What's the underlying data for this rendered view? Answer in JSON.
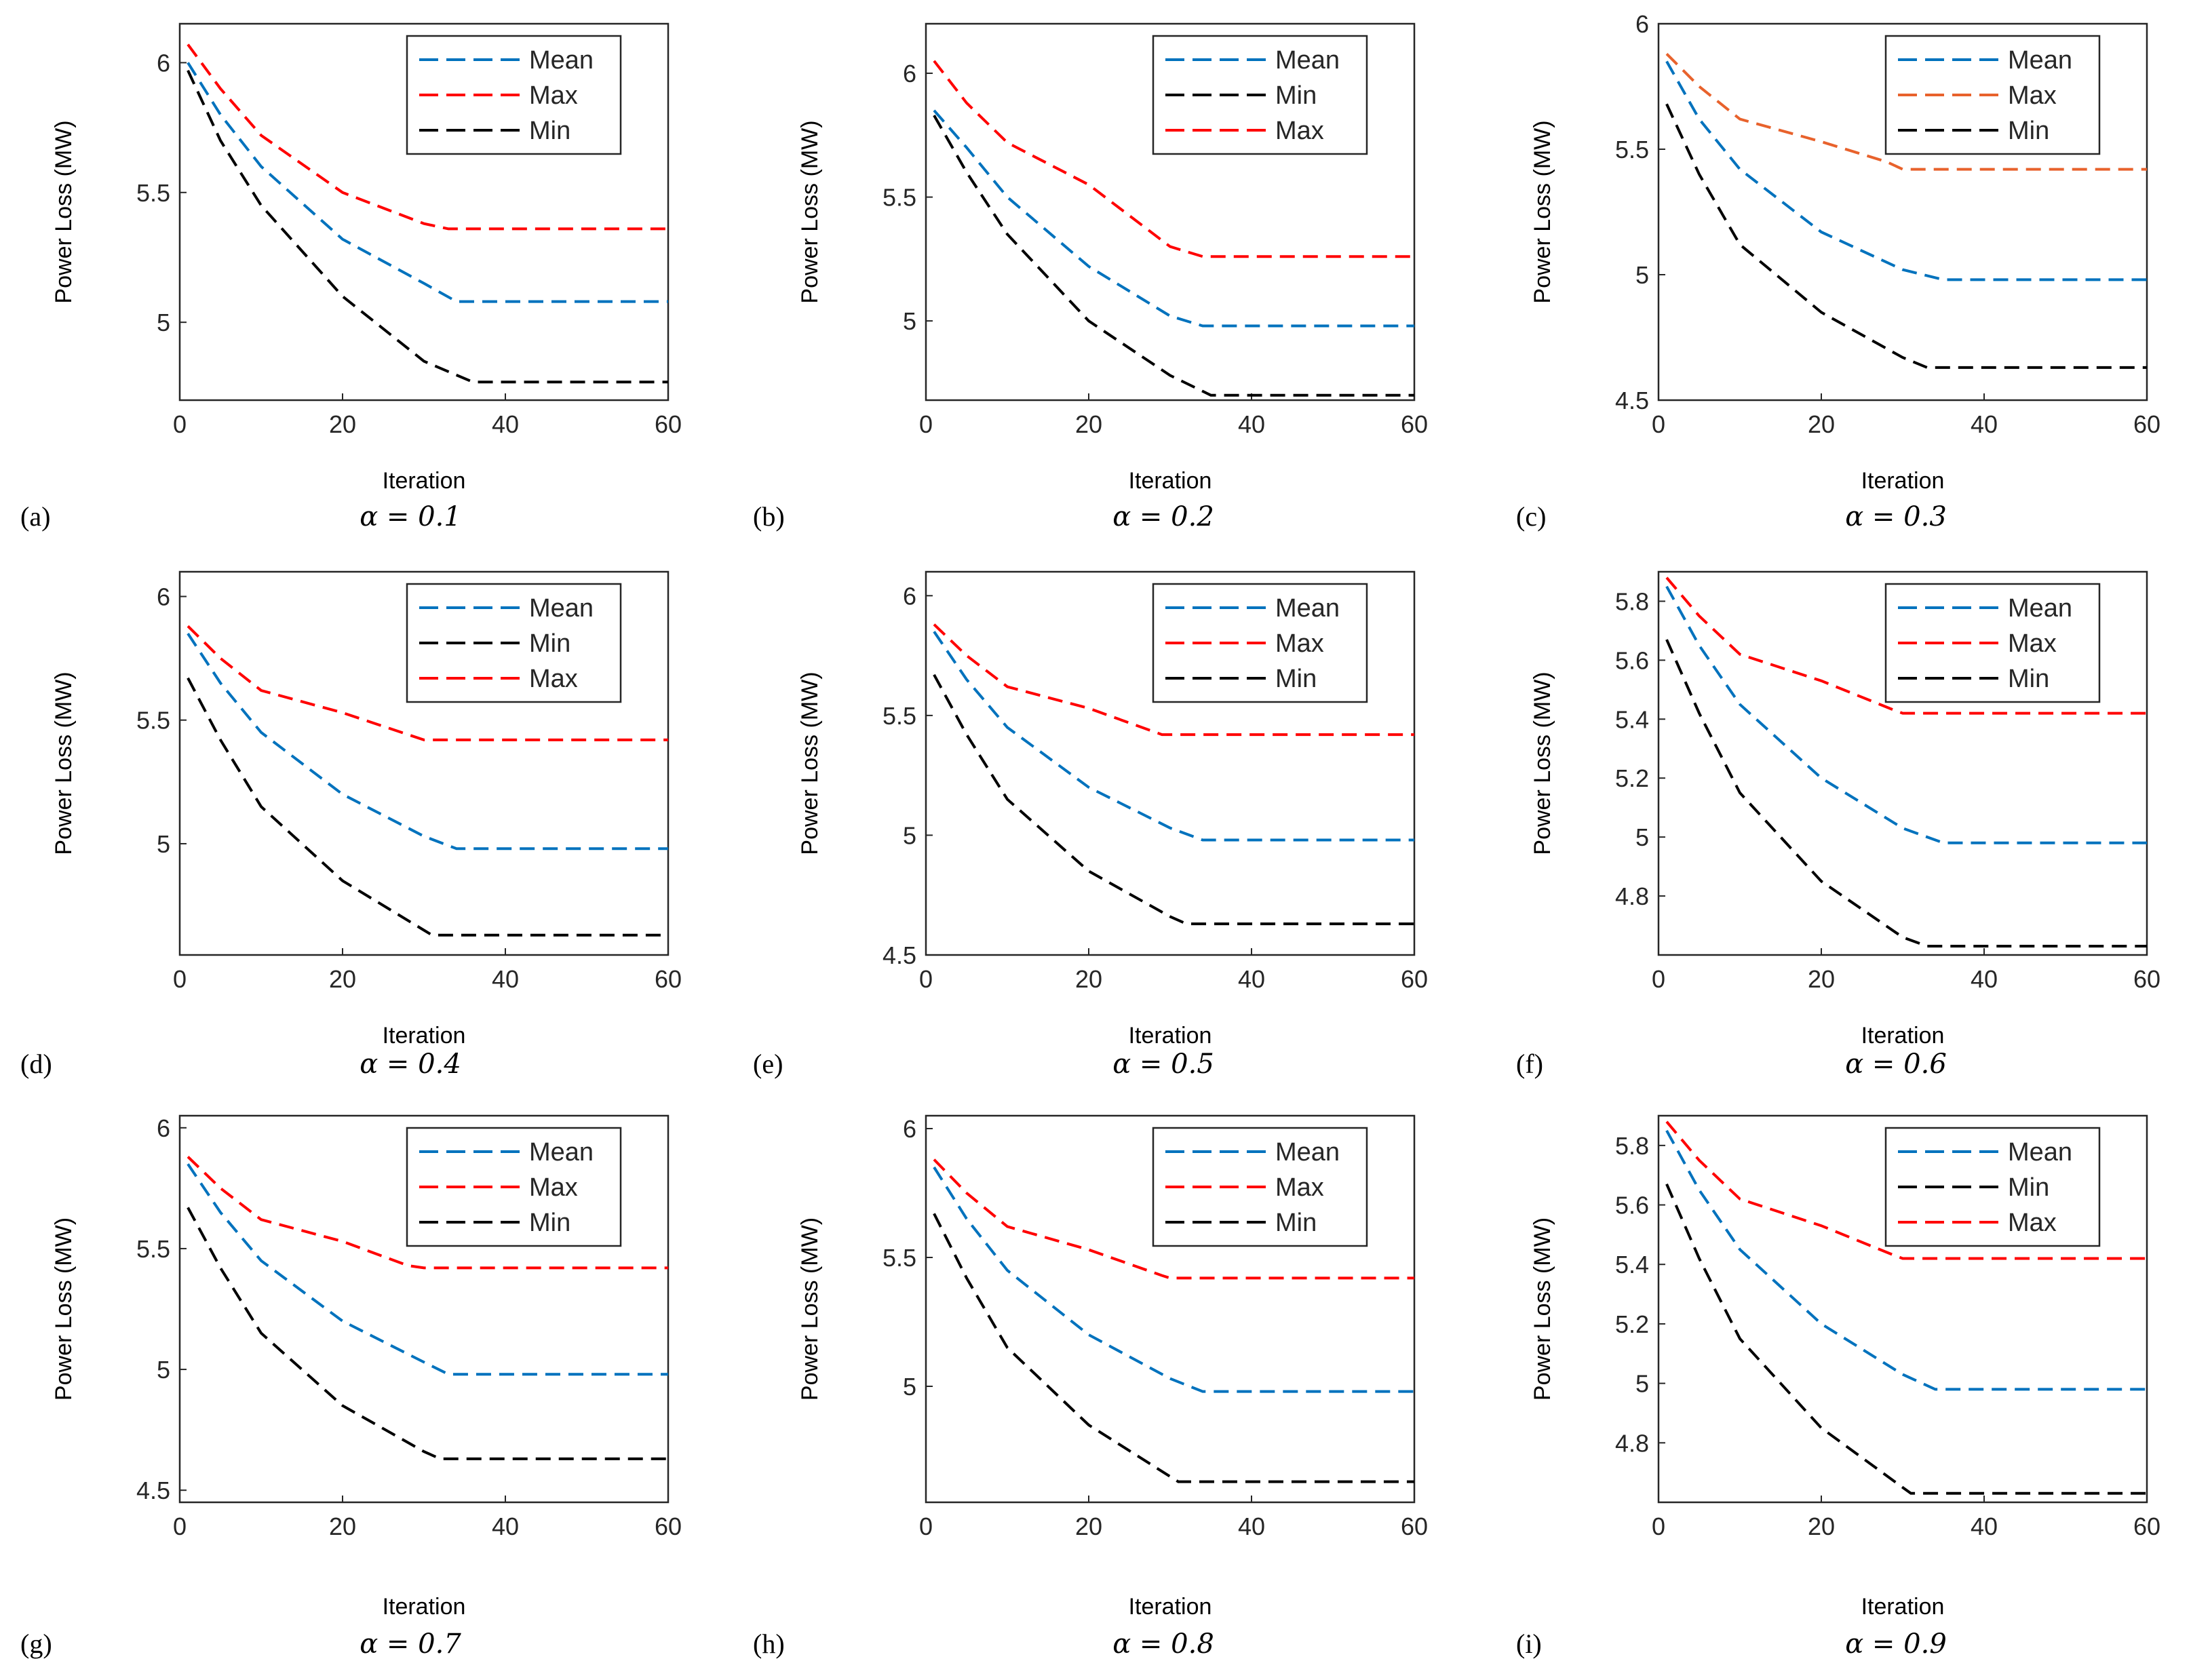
{
  "figure": {
    "description_hint": "3x3 grid of convergence curves",
    "colors": {
      "mean": "#0072BD",
      "max": "#FF0000",
      "min": "#000000",
      "max_orange": "#E8622C",
      "axis": "#262626"
    }
  },
  "chart_data": [
    {
      "panel": "(a)",
      "caption": "α = 0.1",
      "type": "line",
      "title": "",
      "xlabel": "Iteration",
      "ylabel": "Power Loss (MW)",
      "xlim": [
        0,
        60
      ],
      "ylim": [
        4.7,
        6.15
      ],
      "xticks": [
        "0",
        "20",
        "40",
        "60"
      ],
      "yticks": [
        "5",
        "5.5",
        "6"
      ],
      "legend": [
        "Mean",
        "Max",
        "Min"
      ],
      "legend_position": "top-right",
      "series": [
        {
          "name": "Mean",
          "color": "mean",
          "x": [
            1,
            5,
            10,
            20,
            30,
            34,
            60
          ],
          "values": [
            6.0,
            5.8,
            5.6,
            5.32,
            5.15,
            5.08,
            5.08
          ]
        },
        {
          "name": "Max",
          "color": "max",
          "x": [
            1,
            5,
            10,
            20,
            30,
            33,
            60
          ],
          "values": [
            6.07,
            5.9,
            5.72,
            5.5,
            5.38,
            5.36,
            5.36
          ]
        },
        {
          "name": "Min",
          "color": "min",
          "x": [
            1,
            5,
            10,
            20,
            30,
            36,
            60
          ],
          "values": [
            5.97,
            5.7,
            5.45,
            5.1,
            4.85,
            4.77,
            4.77
          ]
        }
      ]
    },
    {
      "panel": "(b)",
      "caption": "α = 0.2",
      "type": "line",
      "title": "",
      "xlabel": "Iteration",
      "ylabel": "Power Loss (MW)",
      "xlim": [
        0,
        60
      ],
      "ylim": [
        4.68,
        6.2
      ],
      "xticks": [
        "0",
        "20",
        "40",
        "60"
      ],
      "yticks": [
        "5",
        "5.5",
        "6"
      ],
      "legend": [
        "Mean",
        "Min",
        "Max"
      ],
      "legend_position": "top-right",
      "series": [
        {
          "name": "Mean",
          "color": "mean",
          "x": [
            1,
            5,
            10,
            20,
            30,
            34,
            60
          ],
          "values": [
            5.85,
            5.7,
            5.5,
            5.22,
            5.02,
            4.98,
            4.98
          ]
        },
        {
          "name": "Min",
          "color": "min",
          "x": [
            1,
            5,
            10,
            20,
            30,
            35,
            60
          ],
          "values": [
            5.83,
            5.6,
            5.35,
            5.0,
            4.78,
            4.7,
            4.7
          ]
        },
        {
          "name": "Max",
          "color": "max",
          "x": [
            1,
            5,
            10,
            20,
            30,
            34,
            60
          ],
          "values": [
            6.05,
            5.88,
            5.72,
            5.55,
            5.3,
            5.26,
            5.26
          ]
        }
      ]
    },
    {
      "panel": "(c)",
      "caption": "α = 0.3",
      "type": "line",
      "title": "",
      "xlabel": "Iteration",
      "ylabel": "Power Loss (MW)",
      "xlim": [
        0,
        60
      ],
      "ylim": [
        4.5,
        6.0
      ],
      "xticks": [
        "0",
        "20",
        "40",
        "60"
      ],
      "yticks": [
        "4.5",
        "5",
        "5.5",
        "6"
      ],
      "legend": [
        "Mean",
        "Max",
        "Min"
      ],
      "legend_position": "top-right",
      "series": [
        {
          "name": "Mean",
          "color": "mean",
          "x": [
            1,
            5,
            10,
            20,
            30,
            35,
            60
          ],
          "values": [
            5.85,
            5.62,
            5.42,
            5.17,
            5.02,
            4.98,
            4.98
          ]
        },
        {
          "name": "Max",
          "color": "max_orange",
          "x": [
            1,
            5,
            10,
            20,
            28,
            30,
            60
          ],
          "values": [
            5.88,
            5.75,
            5.62,
            5.53,
            5.45,
            5.42,
            5.42
          ]
        },
        {
          "name": "Min",
          "color": "min",
          "x": [
            1,
            5,
            10,
            20,
            30,
            33,
            60
          ],
          "values": [
            5.68,
            5.4,
            5.12,
            4.85,
            4.67,
            4.63,
            4.63
          ]
        }
      ]
    },
    {
      "panel": "(d)",
      "caption": "α = 0.4",
      "type": "line",
      "title": "",
      "xlabel": "Iteration",
      "ylabel": "Power Loss (MW)",
      "xlim": [
        0,
        60
      ],
      "ylim": [
        4.55,
        6.1
      ],
      "xticks": [
        "0",
        "20",
        "40",
        "60"
      ],
      "yticks": [
        "5",
        "5.5",
        "6"
      ],
      "legend": [
        "Mean",
        "Min",
        "Max"
      ],
      "legend_position": "top-right",
      "series": [
        {
          "name": "Mean",
          "color": "mean",
          "x": [
            1,
            5,
            10,
            20,
            30,
            34,
            60
          ],
          "values": [
            5.85,
            5.65,
            5.45,
            5.2,
            5.03,
            4.98,
            4.98
          ]
        },
        {
          "name": "Min",
          "color": "min",
          "x": [
            1,
            5,
            10,
            20,
            30,
            31,
            60
          ],
          "values": [
            5.67,
            5.42,
            5.15,
            4.85,
            4.65,
            4.63,
            4.63
          ]
        },
        {
          "name": "Max",
          "color": "max",
          "x": [
            1,
            5,
            10,
            20,
            30,
            31,
            60
          ],
          "values": [
            5.88,
            5.75,
            5.62,
            5.53,
            5.42,
            5.42,
            5.42
          ]
        }
      ]
    },
    {
      "panel": "(e)",
      "caption": "α = 0.5",
      "type": "line",
      "title": "",
      "xlabel": "Iteration",
      "ylabel": "Power Loss (MW)",
      "xlim": [
        0,
        60
      ],
      "ylim": [
        4.5,
        6.1
      ],
      "xticks": [
        "0",
        "20",
        "40",
        "60"
      ],
      "yticks": [
        "4.5",
        "5",
        "5.5",
        "6"
      ],
      "legend": [
        "Mean",
        "Max",
        "Min"
      ],
      "legend_position": "top-right",
      "series": [
        {
          "name": "Mean",
          "color": "mean",
          "x": [
            1,
            5,
            10,
            20,
            30,
            34,
            60
          ],
          "values": [
            5.85,
            5.65,
            5.45,
            5.2,
            5.03,
            4.98,
            4.98
          ]
        },
        {
          "name": "Max",
          "color": "max",
          "x": [
            1,
            5,
            10,
            20,
            29,
            30,
            60
          ],
          "values": [
            5.88,
            5.75,
            5.62,
            5.53,
            5.42,
            5.42,
            5.42
          ]
        },
        {
          "name": "Min",
          "color": "min",
          "x": [
            1,
            5,
            10,
            20,
            30,
            32,
            60
          ],
          "values": [
            5.67,
            5.42,
            5.15,
            4.85,
            4.66,
            4.63,
            4.63
          ]
        }
      ]
    },
    {
      "panel": "(f)",
      "caption": "α = 0.6",
      "type": "line",
      "title": "",
      "xlabel": "Iteration",
      "ylabel": "Power Loss (MW)",
      "xlim": [
        0,
        60
      ],
      "ylim": [
        4.6,
        5.9
      ],
      "xticks": [
        "0",
        "20",
        "40",
        "60"
      ],
      "yticks": [
        "4.8",
        "5",
        "5.2",
        "5.4",
        "5.6",
        "5.8"
      ],
      "legend": [
        "Mean",
        "Max",
        "Min"
      ],
      "legend_position": "top-right",
      "series": [
        {
          "name": "Mean",
          "color": "mean",
          "x": [
            1,
            5,
            10,
            20,
            30,
            35,
            60
          ],
          "values": [
            5.85,
            5.65,
            5.45,
            5.2,
            5.03,
            4.98,
            4.98
          ]
        },
        {
          "name": "Max",
          "color": "max",
          "x": [
            1,
            5,
            10,
            20,
            29,
            30,
            60
          ],
          "values": [
            5.88,
            5.75,
            5.62,
            5.53,
            5.43,
            5.42,
            5.42
          ]
        },
        {
          "name": "Min",
          "color": "min",
          "x": [
            1,
            5,
            10,
            20,
            30,
            33,
            60
          ],
          "values": [
            5.67,
            5.42,
            5.15,
            4.85,
            4.66,
            4.63,
            4.63
          ]
        }
      ]
    },
    {
      "panel": "(g)",
      "caption": "α = 0.7",
      "type": "line",
      "title": "",
      "xlabel": "Iteration",
      "ylabel": "Power Loss (MW)",
      "xlim": [
        0,
        60
      ],
      "ylim": [
        4.45,
        6.05
      ],
      "xticks": [
        "0",
        "20",
        "40",
        "60"
      ],
      "yticks": [
        "4.5",
        "5",
        "5.5",
        "6"
      ],
      "legend": [
        "Mean",
        "Max",
        "Min"
      ],
      "legend_position": "top-right",
      "series": [
        {
          "name": "Mean",
          "color": "mean",
          "x": [
            1,
            5,
            10,
            20,
            30,
            33,
            60
          ],
          "values": [
            5.85,
            5.65,
            5.45,
            5.2,
            5.03,
            4.98,
            4.98
          ]
        },
        {
          "name": "Max",
          "color": "max",
          "x": [
            1,
            5,
            10,
            20,
            28,
            30,
            60
          ],
          "values": [
            5.88,
            5.75,
            5.62,
            5.53,
            5.43,
            5.42,
            5.42
          ]
        },
        {
          "name": "Min",
          "color": "min",
          "x": [
            1,
            5,
            10,
            20,
            30,
            32,
            60
          ],
          "values": [
            5.67,
            5.42,
            5.15,
            4.85,
            4.66,
            4.63,
            4.63
          ]
        }
      ]
    },
    {
      "panel": "(h)",
      "caption": "α = 0.8",
      "type": "line",
      "title": "",
      "xlabel": "Iteration",
      "ylabel": "Power Loss (MW)",
      "xlim": [
        0,
        60
      ],
      "ylim": [
        4.55,
        6.05
      ],
      "xticks": [
        "0",
        "20",
        "40",
        "60"
      ],
      "yticks": [
        "5",
        "5.5",
        "6"
      ],
      "legend": [
        "Mean",
        "Max",
        "Min"
      ],
      "legend_position": "top-right",
      "series": [
        {
          "name": "Mean",
          "color": "mean",
          "x": [
            1,
            5,
            10,
            20,
            30,
            34,
            60
          ],
          "values": [
            5.85,
            5.65,
            5.45,
            5.2,
            5.03,
            4.98,
            4.98
          ]
        },
        {
          "name": "Max",
          "color": "max",
          "x": [
            1,
            5,
            10,
            20,
            29,
            30,
            60
          ],
          "values": [
            5.88,
            5.75,
            5.62,
            5.53,
            5.43,
            5.42,
            5.42
          ]
        },
        {
          "name": "Min",
          "color": "min",
          "x": [
            1,
            5,
            10,
            20,
            30,
            31,
            60
          ],
          "values": [
            5.67,
            5.42,
            5.15,
            4.85,
            4.65,
            4.63,
            4.63
          ]
        }
      ]
    },
    {
      "panel": "(i)",
      "caption": "α = 0.9",
      "type": "line",
      "title": "",
      "xlabel": "Iteration",
      "ylabel": "Power Loss (MW)",
      "xlim": [
        0,
        60
      ],
      "ylim": [
        4.6,
        5.9
      ],
      "xticks": [
        "0",
        "20",
        "40",
        "60"
      ],
      "yticks": [
        "4.8",
        "5",
        "5.2",
        "5.4",
        "5.6",
        "5.8"
      ],
      "legend": [
        "Mean",
        "Min",
        "Max"
      ],
      "legend_position": "top-right",
      "series": [
        {
          "name": "Mean",
          "color": "mean",
          "x": [
            1,
            5,
            10,
            20,
            30,
            34,
            60
          ],
          "values": [
            5.85,
            5.65,
            5.45,
            5.2,
            5.03,
            4.98,
            4.98
          ]
        },
        {
          "name": "Min",
          "color": "min",
          "x": [
            1,
            5,
            10,
            20,
            30,
            31,
            60
          ],
          "values": [
            5.67,
            5.42,
            5.15,
            4.85,
            4.65,
            4.63,
            4.63
          ]
        },
        {
          "name": "Max",
          "color": "max",
          "x": [
            1,
            5,
            10,
            20,
            29,
            30,
            60
          ],
          "values": [
            5.88,
            5.75,
            5.62,
            5.53,
            5.43,
            5.42,
            5.42
          ]
        }
      ]
    }
  ]
}
